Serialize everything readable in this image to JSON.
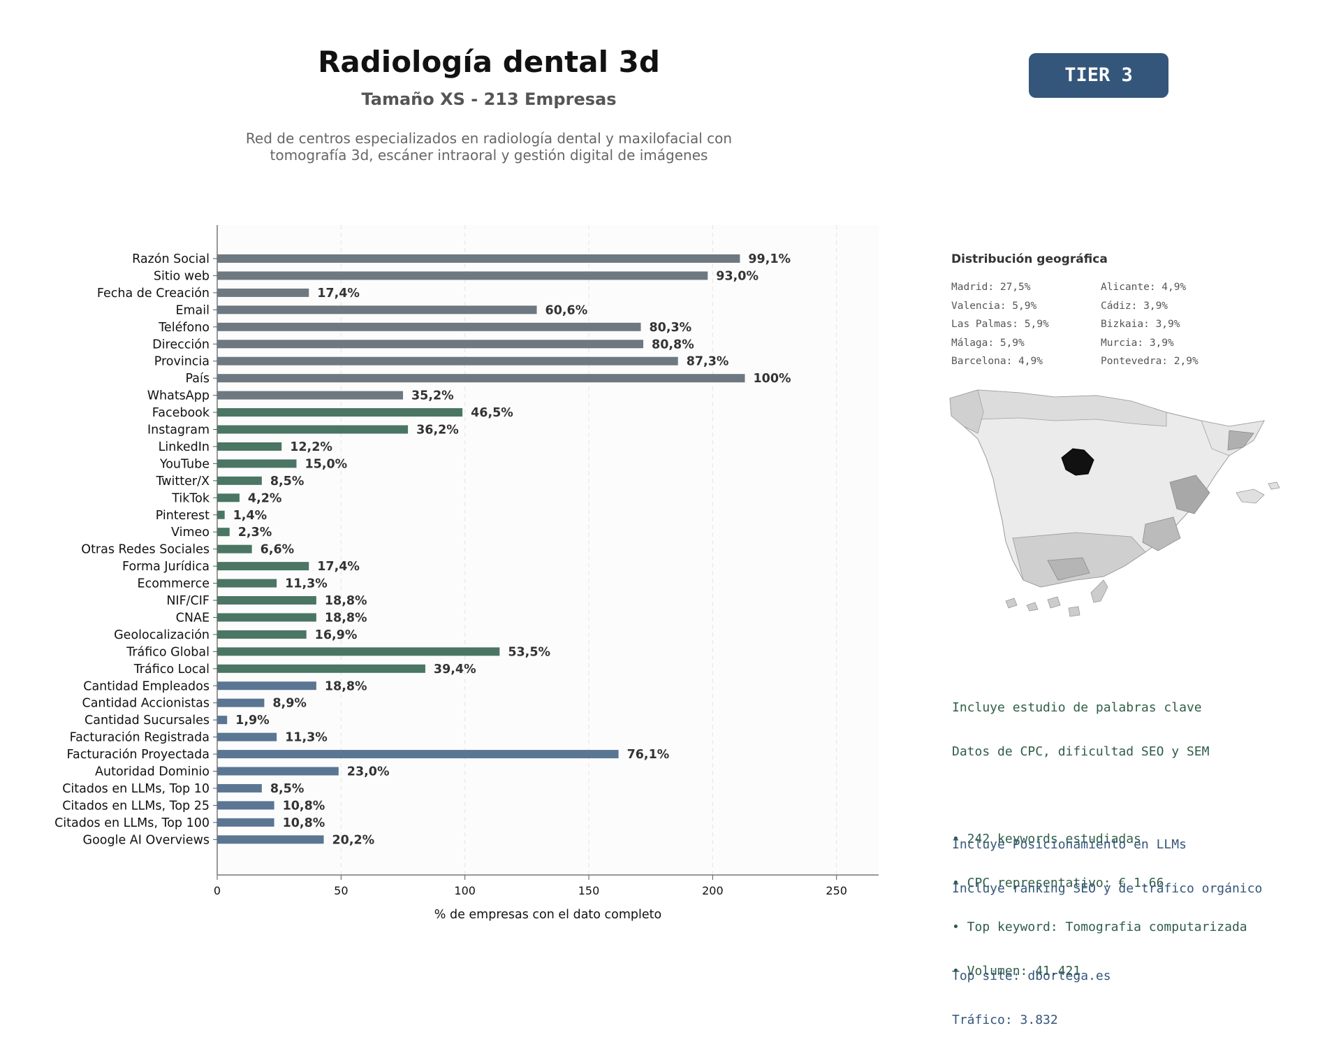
{
  "header": {
    "title": "Radiología dental 3d",
    "subtitle": "Tamaño XS - 213 Empresas",
    "description_line1": "Red de centros especializados en radiología dental y maxilofacial con",
    "description_line2": "tomografía 3d, escáner intraoral y gestión digital de imágenes",
    "tier_badge": "TIER 3"
  },
  "colors": {
    "gray_bar": "#6e7880",
    "green_bar": "#4a7663",
    "blue_bar": "#5a7693",
    "tier_bg": "#34567a",
    "madrid": "#111111"
  },
  "chart_data": {
    "type": "bar",
    "orientation": "horizontal",
    "xlabel": "% de empresas con el dato completo",
    "xlim": [
      0,
      267
    ],
    "xticks": [
      0,
      50,
      100,
      150,
      200,
      250
    ],
    "grid": "vertical dashed",
    "categories": [
      "Razón Social",
      "Sitio web",
      "Fecha de Creación",
      "Email",
      "Teléfono",
      "Dirección",
      "Provincia",
      "País",
      "WhatsApp",
      "Facebook",
      "Instagram",
      "LinkedIn",
      "YouTube",
      "Twitter/X",
      "TikTok",
      "Pinterest",
      "Vimeo",
      "Otras Redes Sociales",
      "Forma Jurídica",
      "Ecommerce",
      "NIF/CIF",
      "CNAE",
      "Geolocalización",
      "Tráfico Global",
      "Tráfico Local",
      "Cantidad Empleados",
      "Cantidad Accionistas",
      "Cantidad Sucursales",
      "Facturación Registrada",
      "Facturación Proyectada",
      "Autoridad Dominio",
      "Citados en LLMs, Top 10",
      "Citados en LLMs, Top 25",
      "Citados en LLMs, Top 100",
      "Google AI Overviews"
    ],
    "values": [
      211,
      198,
      37,
      129,
      171,
      172,
      186,
      213,
      75,
      99,
      77,
      26,
      32,
      18,
      9,
      3,
      5,
      14,
      37,
      24,
      40,
      40,
      36,
      114,
      84,
      40,
      19,
      4,
      24,
      162,
      49,
      18,
      23,
      23,
      43
    ],
    "labels": [
      "99,1%",
      "93,0%",
      "17,4%",
      "60,6%",
      "80,3%",
      "80,8%",
      "87,3%",
      "100%",
      "35,2%",
      "46,5%",
      "36,2%",
      "12,2%",
      "15,0%",
      "8,5%",
      "4,2%",
      "1,4%",
      "2,3%",
      "6,6%",
      "17,4%",
      "11,3%",
      "18,8%",
      "18,8%",
      "16,9%",
      "53,5%",
      "39,4%",
      "18,8%",
      "8,9%",
      "1,9%",
      "11,3%",
      "76,1%",
      "23,0%",
      "8,5%",
      "10,8%",
      "10,8%",
      "20,2%"
    ],
    "groups": [
      "gray",
      "gray",
      "gray",
      "gray",
      "gray",
      "gray",
      "gray",
      "gray",
      "gray",
      "green",
      "green",
      "green",
      "green",
      "green",
      "green",
      "green",
      "green",
      "green",
      "green",
      "green",
      "green",
      "green",
      "green",
      "green",
      "green",
      "blue",
      "blue",
      "blue",
      "blue",
      "blue",
      "blue",
      "blue",
      "blue",
      "blue",
      "blue"
    ]
  },
  "geo": {
    "title": "Distribución geográfica",
    "items": [
      "Madrid: 27,5%",
      "Alicante: 4,9%",
      "Valencia: 5,9%",
      "Cádiz: 3,9%",
      "Las Palmas: 5,9%",
      "Bizkaia: 3,9%",
      "Málaga: 5,9%",
      "Murcia: 3,9%",
      "Barcelona: 4,9%",
      "Pontevedra: 2,9%"
    ]
  },
  "seo": {
    "line1": "Incluye estudio de palabras clave",
    "line2": "Datos de CPC, dificultad SEO y SEM",
    "bullet1": "• 242 keywords estudiadas",
    "bullet2": "• CPC representativo: € 1.66",
    "bullet3": "• Top keyword: Tomografia computarizada",
    "bullet4": "• Volumen: 41.421"
  },
  "llm": {
    "line1": "Incluye Posicionamiento en LLMs",
    "line2": "Incluye ranking SEO y de tráfico orgánico",
    "line3": "Top site: dbortega.es",
    "line4": "Tráfico: 3.832"
  }
}
